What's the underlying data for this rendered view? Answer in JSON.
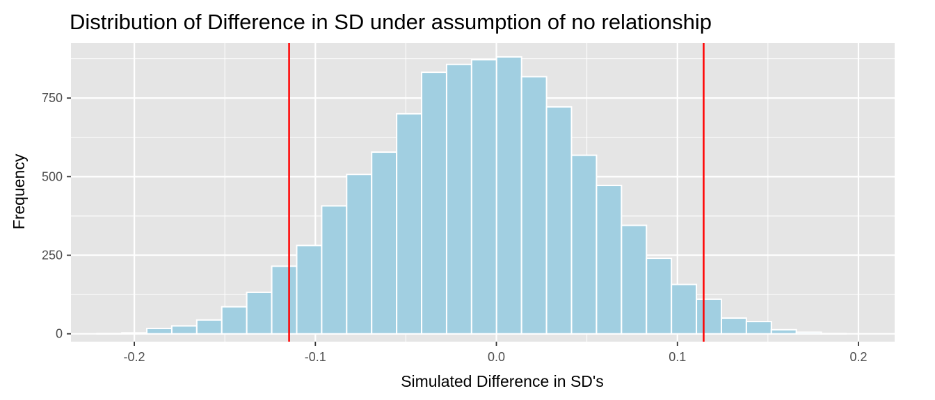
{
  "chart_data": {
    "type": "bar",
    "title": "Distribution of Difference in SD under assumption of no relationship",
    "xlabel": "Simulated Difference in SD's",
    "ylabel": "Frequency",
    "xlim": [
      -0.235,
      0.22
    ],
    "ylim": [
      -25,
      925
    ],
    "x_ticks": [
      -0.2,
      -0.1,
      0.0,
      0.1,
      0.2
    ],
    "x_tick_labels": [
      "-0.2",
      "-0.1",
      "0.0",
      "0.1",
      "0.2"
    ],
    "y_ticks": [
      0,
      250,
      500,
      750
    ],
    "y_tick_labels": [
      "0",
      "250",
      "500",
      "750"
    ],
    "bin_width": 0.0138,
    "bin_centers": [
      -0.2138,
      -0.2,
      -0.1862,
      -0.1724,
      -0.1586,
      -0.1448,
      -0.131,
      -0.1172,
      -0.1034,
      -0.0896,
      -0.0758,
      -0.062,
      -0.0482,
      -0.0344,
      -0.0206,
      -0.0068,
      0.007,
      0.0208,
      0.0346,
      0.0484,
      0.0622,
      0.076,
      0.0898,
      0.1036,
      0.1174,
      0.1312,
      0.145,
      0.1588,
      0.1726,
      0.1864
    ],
    "values": [
      1,
      3,
      17,
      25,
      44,
      86,
      132,
      215,
      281,
      407,
      507,
      578,
      700,
      832,
      857,
      872,
      881,
      818,
      722,
      568,
      472,
      345,
      240,
      157,
      110,
      50,
      39,
      13,
      5,
      1
    ],
    "reference_lines": [
      -0.1145,
      0.1145
    ],
    "bar_fill": "#a1cfe1",
    "bar_stroke": "#ffffff",
    "reference_line_color": "#ff0000",
    "panel_background": "#e5e5e5",
    "grid": true,
    "legend": "none"
  }
}
